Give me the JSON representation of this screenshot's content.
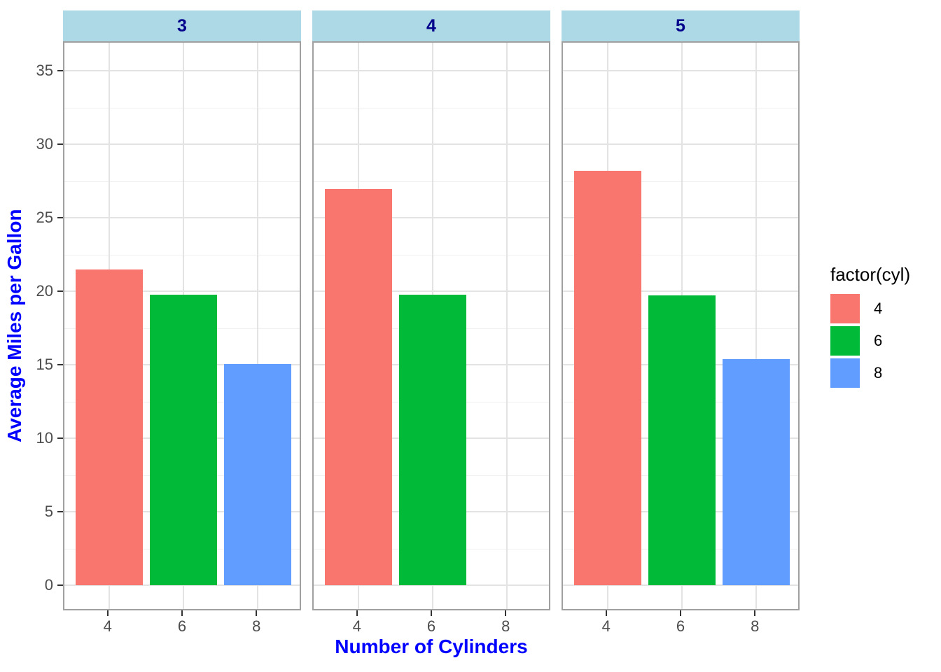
{
  "chart_data": {
    "type": "bar",
    "title": "",
    "xlabel": "Number of Cylinders",
    "ylabel": "Average Miles per Gallon",
    "legend_title": "factor(cyl)",
    "legend_position": "right",
    "categories": [
      "4",
      "6",
      "8"
    ],
    "facet_labels": [
      "3",
      "4",
      "5"
    ],
    "facets": [
      {
        "label": "3",
        "bars": [
          {
            "category": "4",
            "value": 21.5
          },
          {
            "category": "6",
            "value": 19.75
          },
          {
            "category": "8",
            "value": 15.05
          }
        ]
      },
      {
        "label": "4",
        "bars": [
          {
            "category": "4",
            "value": 26.93
          },
          {
            "category": "6",
            "value": 19.75
          }
        ]
      },
      {
        "label": "5",
        "bars": [
          {
            "category": "4",
            "value": 28.2
          },
          {
            "category": "6",
            "value": 19.7
          },
          {
            "category": "8",
            "value": 15.4
          }
        ]
      }
    ],
    "series_colors": {
      "4": "#F8766D",
      "6": "#00BA38",
      "8": "#619CFF"
    },
    "legend_entries": [
      {
        "label": "4",
        "color": "#F8766D"
      },
      {
        "label": "6",
        "color": "#00BA38"
      },
      {
        "label": "8",
        "color": "#619CFF"
      }
    ],
    "y_major_ticks": [
      0,
      5,
      10,
      15,
      20,
      25,
      30,
      35
    ],
    "y_minor_ticks": [
      2.5,
      7.5,
      12.5,
      17.5,
      22.5,
      27.5,
      32.5
    ],
    "ylim": [
      -1.7,
      37
    ],
    "grid": true
  },
  "style": {
    "background": "#FFFFFF",
    "strip_fill": "#ADD8E6",
    "strip_text_color": "#00008B",
    "axis_title_color": "#0000FF",
    "tick_label_color": "#4D4D4D",
    "tick_mark_color": "#333333",
    "panel_border_color": "#A0A0A0",
    "grid_major_color": "#E3E3E3",
    "grid_minor_color": "#F0F0F0",
    "legend_text_color": "#000000"
  }
}
